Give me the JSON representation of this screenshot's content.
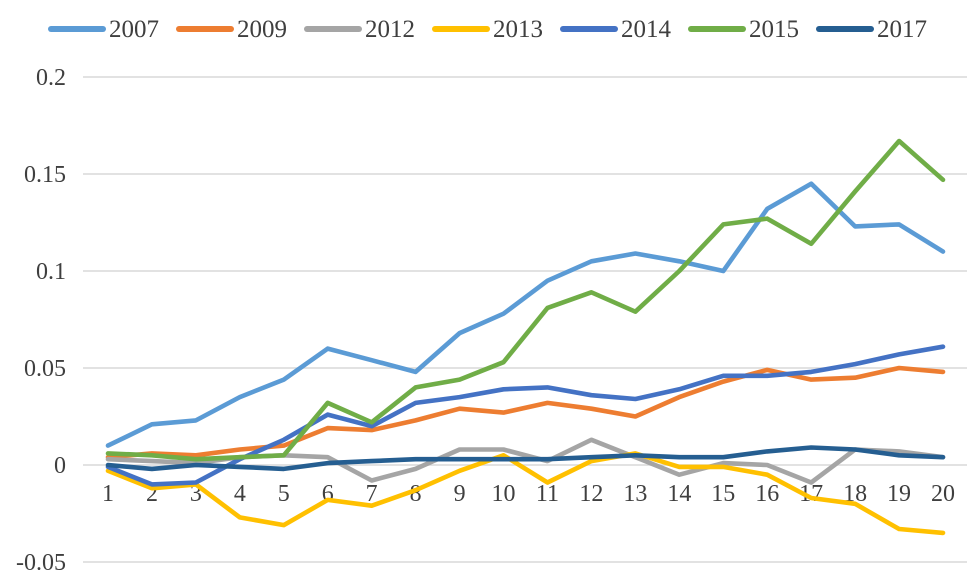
{
  "chart_data": {
    "type": "line",
    "x": [
      1,
      2,
      3,
      4,
      5,
      6,
      7,
      8,
      9,
      10,
      11,
      12,
      13,
      14,
      15,
      16,
      17,
      18,
      19,
      20
    ],
    "series": [
      {
        "name": "2007",
        "color": "#5B9BD5",
        "values": [
          0.01,
          0.021,
          0.023,
          0.035,
          0.044,
          0.06,
          0.054,
          0.048,
          0.068,
          0.078,
          0.095,
          0.105,
          0.109,
          0.105,
          0.1,
          0.132,
          0.145,
          0.123,
          0.124,
          0.11
        ]
      },
      {
        "name": "2009",
        "color": "#ED7D31",
        "values": [
          0.004,
          0.006,
          0.005,
          0.008,
          0.01,
          0.019,
          0.018,
          0.023,
          0.029,
          0.027,
          0.032,
          0.029,
          0.025,
          0.035,
          0.043,
          0.049,
          0.044,
          0.045,
          0.05,
          0.048
        ]
      },
      {
        "name": "2012",
        "color": "#A5A5A5",
        "values": [
          0.003,
          0.002,
          0.001,
          0.004,
          0.005,
          0.004,
          -0.008,
          -0.002,
          0.008,
          0.008,
          0.002,
          0.013,
          0.004,
          -0.005,
          0.001,
          0.0,
          -0.009,
          0.008,
          0.007,
          0.004
        ]
      },
      {
        "name": "2013",
        "color": "#FFC000",
        "values": [
          -0.003,
          -0.012,
          -0.01,
          -0.027,
          -0.031,
          -0.018,
          -0.021,
          -0.013,
          -0.003,
          0.005,
          -0.009,
          0.002,
          0.006,
          -0.001,
          -0.001,
          -0.005,
          -0.017,
          -0.02,
          -0.033,
          -0.035
        ]
      },
      {
        "name": "2014",
        "color": "#4472C4",
        "values": [
          -0.001,
          -0.01,
          -0.009,
          0.003,
          0.013,
          0.026,
          0.02,
          0.032,
          0.035,
          0.039,
          0.04,
          0.036,
          0.034,
          0.039,
          0.046,
          0.046,
          0.048,
          0.052,
          0.057,
          0.061
        ]
      },
      {
        "name": "2015",
        "color": "#70AD47",
        "values": [
          0.006,
          0.005,
          0.003,
          0.004,
          0.005,
          0.032,
          0.022,
          0.04,
          0.044,
          0.053,
          0.081,
          0.089,
          0.079,
          0.1,
          0.124,
          0.127,
          0.114,
          0.141,
          0.167,
          0.147
        ]
      },
      {
        "name": "2017",
        "color": "#255E91",
        "values": [
          0.0,
          -0.002,
          0.0,
          -0.001,
          -0.002,
          0.001,
          0.002,
          0.003,
          0.003,
          0.003,
          0.003,
          0.004,
          0.005,
          0.004,
          0.004,
          0.007,
          0.009,
          0.008,
          0.005,
          0.004
        ]
      }
    ],
    "title": "",
    "xlabel": "",
    "ylabel": "",
    "xlim": [
      1,
      20
    ],
    "ylim": [
      -0.05,
      0.2
    ],
    "yticks": [
      0.2,
      0.15,
      0.1,
      0.05,
      0,
      -0.05
    ],
    "ytick_labels": [
      "0.2",
      "0.15",
      "0.1",
      "0.05",
      "0",
      "-0.05"
    ],
    "xtick_labels": [
      "1",
      "2",
      "3",
      "4",
      "5",
      "6",
      "7",
      "8",
      "9",
      "10",
      "11",
      "12",
      "13",
      "14",
      "15",
      "16",
      "17",
      "18",
      "19",
      "20"
    ],
    "legend_position": "top",
    "grid": "horizontal",
    "colors": {
      "background": "#ffffff",
      "gridline": "#d9d9d9",
      "axis_text": "#3f3f3f"
    }
  }
}
